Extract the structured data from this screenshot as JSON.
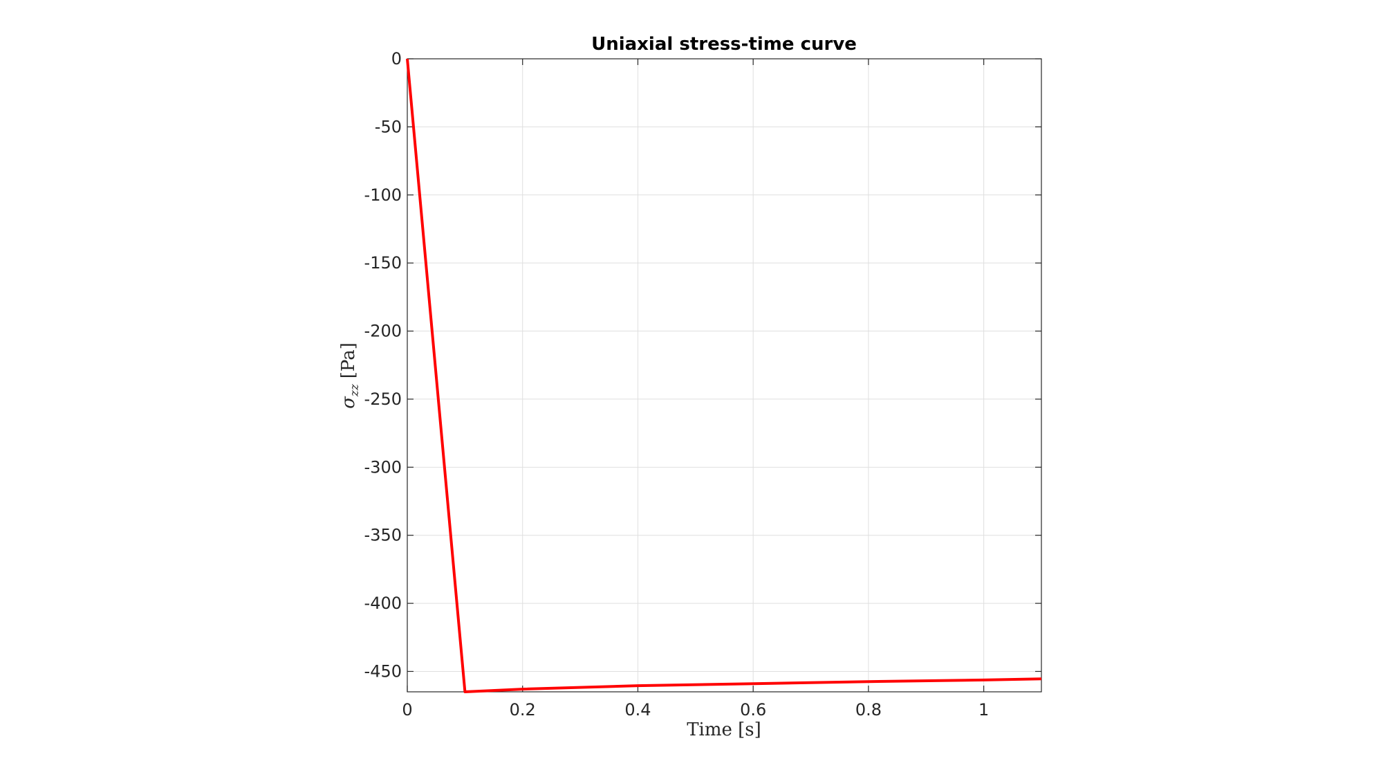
{
  "chart_data": {
    "type": "line",
    "title": "Uniaxial stress-time curve",
    "xlabel": "Time [s]",
    "ylabel": {
      "symbol": "σ",
      "subscript": "zz",
      "unit": "[Pa]"
    },
    "xlim": [
      0,
      1.1
    ],
    "ylim": [
      -465,
      0
    ],
    "x_ticks": [
      0,
      0.2,
      0.4,
      0.6,
      0.8,
      1
    ],
    "x_tick_labels": [
      "0",
      "0.2",
      "0.4",
      "0.6",
      "0.8",
      "1"
    ],
    "y_ticks": [
      0,
      -50,
      -100,
      -150,
      -200,
      -250,
      -300,
      -350,
      -400,
      -450
    ],
    "y_tick_labels": [
      "0",
      "-50",
      "-100",
      "-150",
      "-200",
      "-250",
      "-300",
      "-350",
      "-400",
      "-450"
    ],
    "grid": true,
    "series": [
      {
        "color": "#ff0000",
        "x": [
          0,
          0.1,
          0.2,
          0.4,
          0.6,
          0.8,
          1.0,
          1.1
        ],
        "y": [
          0,
          -465,
          -463,
          -460.5,
          -459,
          -457.5,
          -456.3,
          -455.5
        ]
      }
    ]
  }
}
